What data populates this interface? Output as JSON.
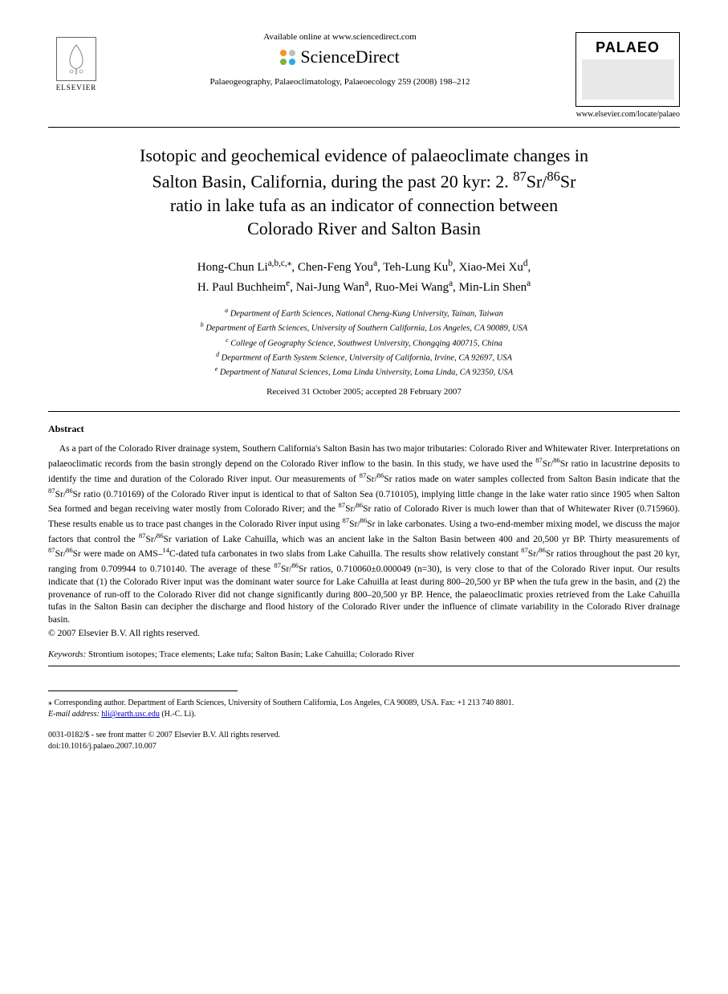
{
  "header": {
    "elsevier_label": "ELSEVIER",
    "available_text": "Available online at www.sciencedirect.com",
    "sd_brand": "ScienceDirect",
    "sd_dot_colors": [
      "#f7941e",
      "#bfbfbf",
      "#7cb342",
      "#29abe2"
    ],
    "citation": "Palaeogeography, Palaeoclimatology, Palaeoecology 259 (2008) 198–212",
    "palaeo_label": "PALAEO",
    "journal_url": "www.elsevier.com/locate/palaeo"
  },
  "title": {
    "line1": "Isotopic and geochemical evidence of palaeoclimate changes in",
    "line2_pre": "Salton Basin, California, during the past 20 kyr: 2. ",
    "line2_iso": "87Sr/86Sr",
    "line3": "ratio in lake tufa as an indicator of connection between",
    "line4": "Colorado River and Salton Basin"
  },
  "authors": {
    "a1_name": "Hong-Chun Li",
    "a1_aff": "a,b,c,",
    "a1_star": "⁎",
    "a2_name": "Chen-Feng You",
    "a2_aff": "a",
    "a3_name": "Teh-Lung Ku",
    "a3_aff": "b",
    "a4_name": "Xiao-Mei Xu",
    "a4_aff": "d",
    "a5_name": "H. Paul Buchheim",
    "a5_aff": "e",
    "a6_name": "Nai-Jung Wan",
    "a6_aff": "a",
    "a7_name": "Ruo-Mei Wang",
    "a7_aff": "a",
    "a8_name": "Min-Lin Shen",
    "a8_aff": "a"
  },
  "affiliations": {
    "a": "Department of Earth Sciences, National Cheng-Kung University, Tainan, Taiwan",
    "b": "Department of Earth Sciences, University of Southern California, Los Angeles, CA 90089, USA",
    "c": "College of Geography Science, Southwest University, Chongqing 400715, China",
    "d": "Department of Earth System Science, University of California, Irvine, CA 92697, USA",
    "e": "Department of Natural Sciences, Loma Linda University, Loma Linda, CA 92350, USA"
  },
  "dates": "Received 31 October 2005; accepted 28 February 2007",
  "abstract": {
    "heading": "Abstract",
    "body": "As a part of the Colorado River drainage system, Southern California's Salton Basin has two major tributaries: Colorado River and Whitewater River. Interpretations on palaeoclimatic records from the basin strongly depend on the Colorado River inflow to the basin. In this study, we have used the 87Sr/86Sr ratio in lacustrine deposits to identify the time and duration of the Colorado River input. Our measurements of 87Sr/86Sr ratios made on water samples collected from Salton Basin indicate that the 87Sr/86Sr ratio (0.710169) of the Colorado River input is identical to that of Salton Sea (0.710105), implying little change in the lake water ratio since 1905 when Salton Sea formed and began receiving water mostly from Colorado River; and the 87Sr/86Sr ratio of Colorado River is much lower than that of Whitewater River (0.715960). These results enable us to trace past changes in the Colorado River input using 87Sr/86Sr in lake carbonates. Using a two-end-member mixing model, we discuss the major factors that control the 87Sr/86Sr variation of Lake Cahuilla, which was an ancient lake in the Salton Basin between 400 and 20,500 yr BP. Thirty measurements of 87Sr/86Sr were made on AMS–14C-dated tufa carbonates in two slabs from Lake Cahuilla. The results show relatively constant 87Sr/86Sr ratios throughout the past 20 kyr, ranging from 0.709944 to 0.710140. The average of these 87Sr/86Sr ratios, 0.710060±0.000049 (n=30), is very close to that of the Colorado River input. Our results indicate that (1) the Colorado River input was the dominant water source for Lake Cahuilla at least during 800–20,500 yr BP when the tufa grew in the basin, and (2) the provenance of run-off to the Colorado River did not change significantly during 800–20,500 yr BP. Hence, the palaeoclimatic proxies retrieved from the Lake Cahuilla tufas in the Salton Basin can decipher the discharge and flood history of the Colorado River under the influence of climate variability in the Colorado River drainage basin.",
    "copyright": "© 2007 Elsevier B.V. All rights reserved."
  },
  "keywords": {
    "label": "Keywords:",
    "list": "Strontium isotopes; Trace elements; Lake tufa; Salton Basin; Lake Cahuilla; Colorado River"
  },
  "footer": {
    "corresponding": "⁎ Corresponding author. Department of Earth Sciences, University of Southern California, Los Angeles, CA 90089, USA. Fax: +1 213 740 8801.",
    "email_label": "E-mail address:",
    "email": "hli@earth.usc.edu",
    "email_suffix": "(H.-C. Li).",
    "front_matter": "0031-0182/$ - see front matter © 2007 Elsevier B.V. All rights reserved.",
    "doi": "doi:10.1016/j.palaeo.2007.10.007"
  },
  "colors": {
    "text": "#000000",
    "background": "#ffffff",
    "link": "#0000cc",
    "rule": "#000000"
  },
  "typography": {
    "title_fontsize": 22,
    "author_fontsize": 15,
    "affil_fontsize": 10.5,
    "body_fontsize": 11.5,
    "font_family": "Times New Roman"
  }
}
